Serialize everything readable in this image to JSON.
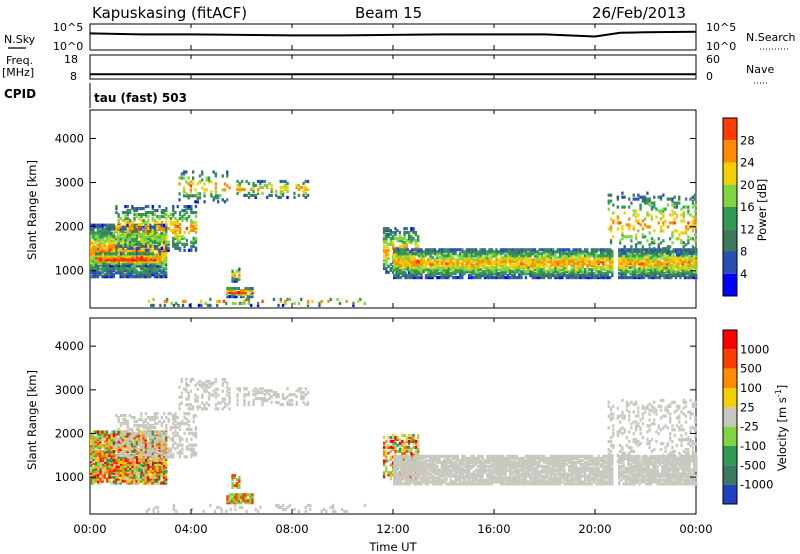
{
  "header": {
    "station": "Kapuskasing (fitACF)",
    "beam": "Beam 15",
    "date": "26/Feb/2013"
  },
  "strip_labels": {
    "nsky": "N.Sky",
    "nsearch": "N.Search",
    "freq": "Freq.",
    "freq_unit": "[MHz]",
    "nave": "Nave",
    "cpid": "CPID",
    "cpid_value": "tau (fast) 503"
  },
  "colors": {
    "noise_line": "#000000",
    "range_gate_outline": "#000000"
  },
  "chart_data": [
    {
      "type": "line",
      "title": "",
      "left_label": "N.Sky",
      "right_label": "N.Search",
      "left_ticks": [
        "10^5",
        "10^0"
      ],
      "right_ticks": [
        "10^5",
        "10^0"
      ],
      "x": [
        0,
        2,
        4,
        6,
        8,
        10,
        12,
        14,
        16,
        18,
        20,
        21,
        22,
        24
      ],
      "series": [
        {
          "values": [
            3.2,
            3.0,
            3.0,
            2.9,
            2.8,
            2.8,
            2.9,
            3.0,
            3.0,
            3.0,
            2.6,
            3.3,
            3.4,
            3.5
          ]
        }
      ],
      "ylim": [
        0,
        5
      ]
    },
    {
      "type": "line",
      "left_label": "Freq.",
      "left_unit": "[MHz]",
      "right_label": "Nave",
      "left_ticks": [
        "18",
        "8"
      ],
      "right_ticks": [
        "60",
        "0"
      ],
      "x": [
        0,
        24
      ],
      "series": [
        {
          "values": [
            10,
            10
          ]
        }
      ],
      "ylim": [
        8,
        18
      ]
    },
    {
      "type": "heatmap",
      "ylabel": "Slant Range [km]",
      "colorbar_label": "Power [dB]",
      "colorbar_ticks": [
        "28",
        "24",
        "20",
        "16",
        "12",
        "8",
        "4"
      ],
      "yticks": [
        "4000",
        "3000",
        "2000",
        "1000"
      ],
      "ylim": [
        200,
        4600
      ],
      "xlim": [
        0,
        24
      ],
      "colors": [
        "#0000ff",
        "#2a4fb3",
        "#3b7a5c",
        "#2f9a52",
        "#7fd640",
        "#f5d000",
        "#ff8c00",
        "#ff3d00",
        "#ff0000"
      ]
    },
    {
      "type": "heatmap",
      "ylabel": "Slant Range [km]",
      "colorbar_label": "Velocity [m s",
      "colorbar_unit_sup": "-1",
      "colorbar_unit_close": "]",
      "colorbar_ticks": [
        "1000",
        "500",
        "100",
        "25",
        "-25",
        "-100",
        "-500",
        "-1000"
      ],
      "yticks": [
        "4000",
        "3000",
        "2000",
        "1000"
      ],
      "ylim": [
        200,
        4600
      ],
      "xlim": [
        0,
        24
      ],
      "xticks": [
        "00:00",
        "04:00",
        "08:00",
        "12:00",
        "16:00",
        "20:00",
        "00:00"
      ],
      "xlabel": "Time UT",
      "colors": [
        "#2040c0",
        "#3a7a60",
        "#2f9a52",
        "#7fd640",
        "#c8c8c0",
        "#f5d000",
        "#ff8c00",
        "#ff3d00",
        "#ff0000"
      ]
    }
  ]
}
